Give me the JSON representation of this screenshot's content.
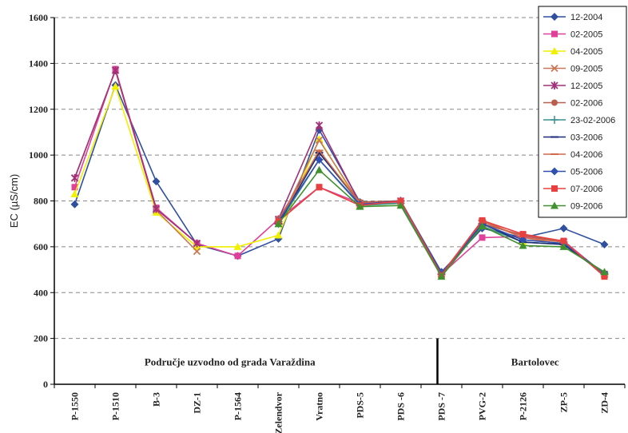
{
  "chart_data": {
    "type": "line",
    "title": "",
    "xlabel": "",
    "ylabel": "EC (µS/cm)",
    "ylim": [
      0,
      1600
    ],
    "yticks": [
      0,
      200,
      400,
      600,
      800,
      1000,
      1200,
      1400,
      1600
    ],
    "grid": true,
    "legend_position": "top-right",
    "categories": [
      "P-1550",
      "P-1510",
      "B-3",
      "DZ-1",
      "P-1564",
      "Zelendvor",
      "Vratno",
      "PDS-5",
      "PDS -6",
      "PDS -7",
      "PVG-2",
      "P-2126",
      "ZP-5",
      "ZD-4"
    ],
    "regions": [
      "Područje uzvodno od grada Varaždina",
      "Bartolovec"
    ],
    "series": [
      {
        "name": "12-2004",
        "color": "#2f4f9f",
        "marker": "diamond",
        "values": [
          785,
          1305,
          885,
          610,
          560,
          635,
          1110,
          795,
          800,
          490,
          680,
          640,
          680,
          610
        ]
      },
      {
        "name": "02-2005",
        "color": "#e0409a",
        "marker": "square",
        "values": [
          860,
          1375,
          770,
          615,
          560,
          720,
          860,
          790,
          795,
          480,
          640,
          645,
          625,
          480
        ]
      },
      {
        "name": "04-2005",
        "color": "#f0f000",
        "marker": "triangle",
        "values": [
          830,
          1300,
          750,
          600,
          600,
          650,
          1070,
          780,
          790,
          480,
          700,
          620,
          610,
          480
        ]
      },
      {
        "name": "09-2005",
        "color": "#c87858",
        "marker": "x",
        "values": [
          900,
          1370,
          760,
          580,
          null,
          700,
          1065,
          790,
          790,
          480,
          710,
          640,
          610,
          480
        ]
      },
      {
        "name": "12-2005",
        "color": "#a03078",
        "marker": "star",
        "values": [
          900,
          1370,
          765,
          615,
          null,
          720,
          1130,
          790,
          800,
          480,
          700,
          650,
          620,
          480
        ]
      },
      {
        "name": "02-2006",
        "color": "#b86050",
        "marker": "circle",
        "values": [
          null,
          null,
          null,
          null,
          null,
          720,
          1010,
          795,
          800,
          480,
          700,
          650,
          620,
          480
        ]
      },
      {
        "name": "23-02-2006",
        "color": "#3a9090",
        "marker": "plus",
        "values": [
          null,
          null,
          null,
          null,
          null,
          700,
          980,
          780,
          790,
          480,
          690,
          620,
          610,
          480
        ]
      },
      {
        "name": "03-2006",
        "color": "#1a2a78",
        "marker": "dash",
        "values": [
          null,
          null,
          null,
          null,
          null,
          700,
          1010,
          790,
          800,
          480,
          700,
          620,
          610,
          480
        ]
      },
      {
        "name": "04-2006",
        "color": "#d06a4a",
        "marker": "dash",
        "values": [
          null,
          null,
          null,
          null,
          null,
          710,
          1020,
          790,
          800,
          480,
          715,
          640,
          620,
          480
        ]
      },
      {
        "name": "05-2006",
        "color": "#3050b0",
        "marker": "diamond",
        "values": [
          null,
          null,
          null,
          null,
          null,
          710,
          980,
          785,
          800,
          480,
          700,
          630,
          615,
          485
        ]
      },
      {
        "name": "07-2006",
        "color": "#e84040",
        "marker": "square",
        "values": [
          null,
          null,
          null,
          null,
          null,
          710,
          860,
          780,
          800,
          475,
          715,
          655,
          625,
          470
        ]
      },
      {
        "name": "09-2006",
        "color": "#409030",
        "marker": "triangle",
        "values": [
          null,
          null,
          null,
          null,
          null,
          700,
          935,
          775,
          780,
          470,
          690,
          605,
          600,
          490
        ]
      }
    ]
  }
}
